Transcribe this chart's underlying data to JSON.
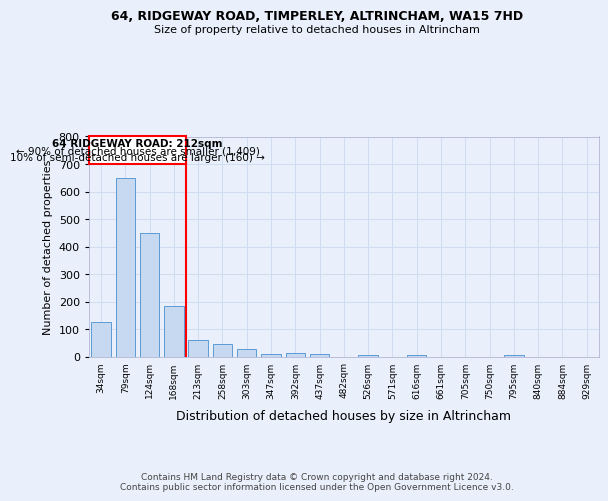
{
  "title1": "64, RIDGEWAY ROAD, TIMPERLEY, ALTRINCHAM, WA15 7HD",
  "title2": "Size of property relative to detached houses in Altrincham",
  "xlabel": "Distribution of detached houses by size in Altrincham",
  "ylabel": "Number of detached properties",
  "categories": [
    "34sqm",
    "79sqm",
    "124sqm",
    "168sqm",
    "213sqm",
    "258sqm",
    "303sqm",
    "347sqm",
    "392sqm",
    "437sqm",
    "482sqm",
    "526sqm",
    "571sqm",
    "616sqm",
    "661sqm",
    "705sqm",
    "750sqm",
    "795sqm",
    "840sqm",
    "884sqm",
    "929sqm"
  ],
  "values": [
    125,
    650,
    450,
    185,
    60,
    45,
    28,
    10,
    13,
    10,
    0,
    7,
    0,
    7,
    0,
    0,
    0,
    7,
    0,
    0,
    0
  ],
  "bar_color": "#c6d9f0",
  "bar_edge_color": "#5b9bd5",
  "redline_x": 3.5,
  "annotation_line1": "64 RIDGEWAY ROAD: 212sqm",
  "annotation_line2": "← 90% of detached houses are smaller (1,409)",
  "annotation_line3": "10% of semi-detached houses are larger (160) →",
  "ylim": [
    0,
    800
  ],
  "yticks": [
    0,
    100,
    200,
    300,
    400,
    500,
    600,
    700,
    800
  ],
  "background_color": "#eaf0fb",
  "grid_color": "#d0ddf0",
  "footer1": "Contains HM Land Registry data © Crown copyright and database right 2024.",
  "footer2": "Contains public sector information licensed under the Open Government Licence v3.0."
}
